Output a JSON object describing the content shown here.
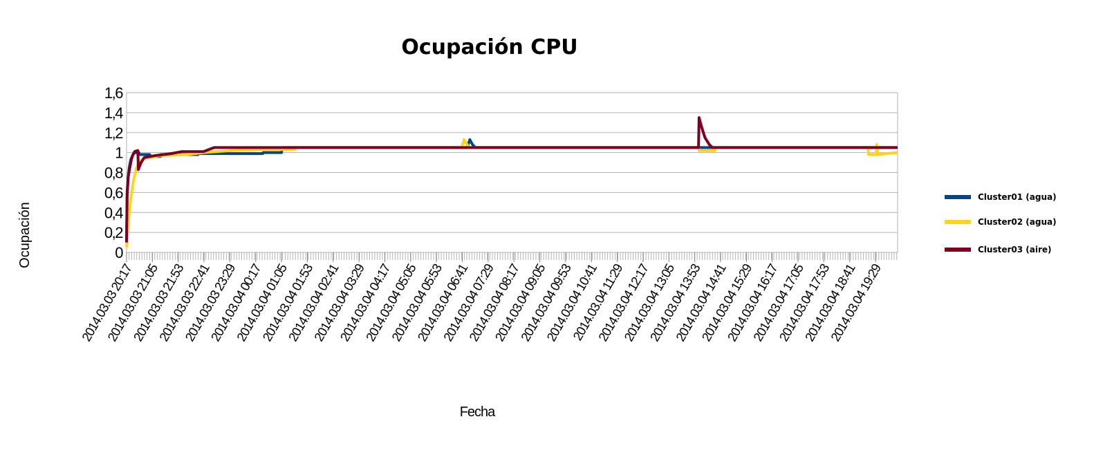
{
  "chart_data": {
    "type": "line",
    "title": "Ocupación CPU",
    "xlabel": "Fecha",
    "ylabel": "Ocupación",
    "ylim": [
      0,
      1.6
    ],
    "yticks": [
      "0",
      "0,2",
      "0,4",
      "0,6",
      "0,8",
      "1",
      "1,2",
      "1,4",
      "1,6"
    ],
    "ytick_values": [
      0,
      0.2,
      0.4,
      0.6,
      0.8,
      1,
      1.2,
      1.4,
      1.6
    ],
    "grid": true,
    "legend_position": "right",
    "x_range": [
      "2014.03.03 20:17",
      "2014.03.04 20:10"
    ],
    "x_tick_labels": [
      "2014.03.03 20:17",
      "2014.03.03 21:05",
      "2014.03.03 21:53",
      "2014.03.03 22:41",
      "2014.03.03 23:29",
      "2014.03.04 00:17",
      "2014.03.04 01:05",
      "2014.03.04 01:53",
      "2014.03.04 02:41",
      "2014.03.04 03:29",
      "2014.03.04 04:17",
      "2014.03.04 05:05",
      "2014.03.04 05:53",
      "2014.03.04 06:41",
      "2014.03.04 07:29",
      "2014.03.04 08:17",
      "2014.03.04 09:05",
      "2014.03.04 09:53",
      "2014.03.04 10:41",
      "2014.03.04 11:29",
      "2014.03.04 12:17",
      "2014.03.04 13:05",
      "2014.03.04 13:53",
      "2014.03.04 14:41",
      "2014.03.04 15:29",
      "2014.03.04 16:17",
      "2014.03.04 17:05",
      "2014.03.04 17:53",
      "2014.03.04 18:41",
      "2014.03.04 19:29"
    ],
    "series": [
      {
        "name": "Cluster01 (agua)",
        "color": "#004586",
        "points": [
          [
            "2014.03.03 20:17",
            0.1
          ],
          [
            "2014.03.03 20:18",
            0.55
          ],
          [
            "2014.03.03 20:20",
            0.75
          ],
          [
            "2014.03.03 20:22",
            0.85
          ],
          [
            "2014.03.03 20:25",
            0.93
          ],
          [
            "2014.03.03 20:28",
            0.97
          ],
          [
            "2014.03.03 20:32",
            1.0
          ],
          [
            "2014.03.03 20:40",
            1.0
          ],
          [
            "2014.03.03 20:41",
            0.98
          ],
          [
            "2014.03.03 21:00",
            0.98
          ],
          [
            "2014.03.03 21:01",
            0.96
          ],
          [
            "2014.03.03 21:20",
            0.96
          ],
          [
            "2014.03.03 21:21",
            0.98
          ],
          [
            "2014.03.03 22:30",
            0.98
          ],
          [
            "2014.03.03 22:31",
            0.99
          ],
          [
            "2014.03.04 00:30",
            0.99
          ],
          [
            "2014.03.04 00:31",
            1.0
          ],
          [
            "2014.03.04 01:05",
            1.0
          ],
          [
            "2014.03.04 01:06",
            1.05
          ],
          [
            "2014.03.04 06:50",
            1.05
          ],
          [
            "2014.03.04 06:55",
            1.13
          ],
          [
            "2014.03.04 07:00",
            1.08
          ],
          [
            "2014.03.04 07:05",
            1.05
          ],
          [
            "2014.03.04 20:10",
            1.05
          ]
        ]
      },
      {
        "name": "Cluster02 (agua)",
        "color": "#ffd320",
        "points": [
          [
            "2014.03.03 20:17",
            0.05
          ],
          [
            "2014.03.03 20:20",
            0.3
          ],
          [
            "2014.03.03 20:25",
            0.55
          ],
          [
            "2014.03.03 20:30",
            0.72
          ],
          [
            "2014.03.03 20:35",
            0.84
          ],
          [
            "2014.03.03 20:40",
            0.9
          ],
          [
            "2014.03.03 20:48",
            0.94
          ],
          [
            "2014.03.03 21:00",
            0.95
          ],
          [
            "2014.03.03 21:20",
            0.97
          ],
          [
            "2014.03.03 22:10",
            0.98
          ],
          [
            "2014.03.03 22:40",
            1.0
          ],
          [
            "2014.03.03 23:30",
            1.02
          ],
          [
            "2014.03.04 00:30",
            1.03
          ],
          [
            "2014.03.04 01:30",
            1.03
          ],
          [
            "2014.03.04 01:31",
            1.05
          ],
          [
            "2014.03.04 06:40",
            1.05
          ],
          [
            "2014.03.04 06:44",
            1.13
          ],
          [
            "2014.03.04 06:50",
            1.08
          ],
          [
            "2014.03.04 06:54",
            1.05
          ],
          [
            "2014.03.04 14:00",
            1.05
          ],
          [
            "2014.03.04 14:01",
            1.02
          ],
          [
            "2014.03.04 14:30",
            1.02
          ],
          [
            "2014.03.04 14:31",
            1.05
          ],
          [
            "2014.03.04 19:15",
            1.05
          ],
          [
            "2014.03.04 19:16",
            0.98
          ],
          [
            "2014.03.04 19:30",
            0.98
          ],
          [
            "2014.03.04 19:31",
            1.08
          ],
          [
            "2014.03.04 19:33",
            0.98
          ],
          [
            "2014.03.04 20:10",
            1.0
          ]
        ]
      },
      {
        "name": "Cluster03 (aire)",
        "color": "#7e0021",
        "points": [
          [
            "2014.03.03 20:17",
            0.1
          ],
          [
            "2014.03.03 20:18",
            0.6
          ],
          [
            "2014.03.03 20:20",
            0.75
          ],
          [
            "2014.03.03 20:23",
            0.85
          ],
          [
            "2014.03.03 20:26",
            0.93
          ],
          [
            "2014.03.03 20:29",
            0.98
          ],
          [
            "2014.03.03 20:32",
            1.01
          ],
          [
            "2014.03.03 20:38",
            1.02
          ],
          [
            "2014.03.03 20:39",
            0.83
          ],
          [
            "2014.03.03 20:44",
            0.9
          ],
          [
            "2014.03.03 20:50",
            0.95
          ],
          [
            "2014.03.03 21:10",
            0.97
          ],
          [
            "2014.03.03 21:40",
            0.99
          ],
          [
            "2014.03.03 22:00",
            1.01
          ],
          [
            "2014.03.03 22:40",
            1.01
          ],
          [
            "2014.03.03 22:50",
            1.03
          ],
          [
            "2014.03.03 23:00",
            1.05
          ],
          [
            "2014.03.04 14:00",
            1.05
          ],
          [
            "2014.03.04 14:01",
            1.35
          ],
          [
            "2014.03.04 14:06",
            1.25
          ],
          [
            "2014.03.04 14:12",
            1.15
          ],
          [
            "2014.03.04 14:20",
            1.08
          ],
          [
            "2014.03.04 14:26",
            1.05
          ],
          [
            "2014.03.04 20:10",
            1.05
          ]
        ]
      }
    ]
  }
}
